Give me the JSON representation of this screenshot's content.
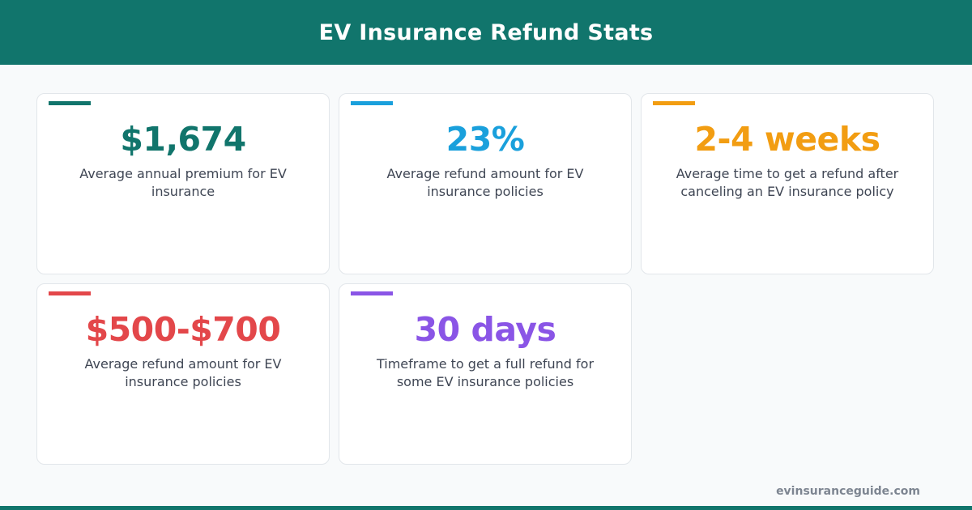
{
  "header": {
    "title": "EV Insurance Refund Stats",
    "bg_color": "#11756c"
  },
  "stats": [
    {
      "value": "$1,674",
      "description": "Average annual premium for EV insurance",
      "color": "#11756c"
    },
    {
      "value": "23%",
      "description": "Average refund amount for EV insurance policies",
      "color": "#1aa0dc"
    },
    {
      "value": "2-4 weeks",
      "description": "Average time to get a refund after canceling an EV insurance policy",
      "color": "#f29d12"
    },
    {
      "value": "$500-$700",
      "description": "Average refund amount for EV insurance policies",
      "color": "#e3474a"
    },
    {
      "value": "30 days",
      "description": "Timeframe to get a full refund for some EV insurance policies",
      "color": "#8a55e6"
    }
  ],
  "footer": {
    "source": "evinsuranceguide.com"
  }
}
